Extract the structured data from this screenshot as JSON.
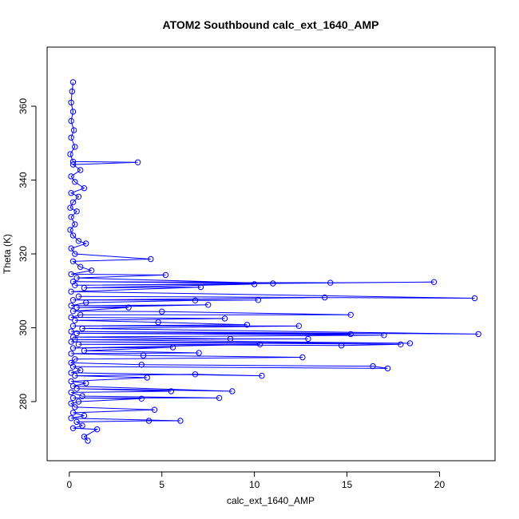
{
  "chart_data": {
    "type": "line",
    "title": "ATOM2 Southbound calc_ext_1640_AMP",
    "xlabel": "calc_ext_1640_AMP",
    "ylabel": "Theta (K)",
    "xlim": [
      -1.2,
      23.0
    ],
    "ylim": [
      264,
      376
    ],
    "xticks": [
      0,
      5,
      10,
      15,
      20
    ],
    "yticks": [
      280,
      300,
      320,
      340,
      360
    ],
    "grid": false,
    "legend": "none",
    "marker": "open-circle",
    "color": "#0000ff",
    "series": [
      {
        "values": [
          [
            0.2,
            366.5
          ],
          [
            0.15,
            364.0
          ],
          [
            0.1,
            361.0
          ],
          [
            0.2,
            358.5
          ],
          [
            0.1,
            356.0
          ],
          [
            0.25,
            353.5
          ],
          [
            0.1,
            351.5
          ],
          [
            0.3,
            349.0
          ],
          [
            0.05,
            347.0
          ],
          [
            0.2,
            345.0
          ],
          [
            3.7,
            344.8
          ],
          [
            0.2,
            344.2
          ],
          [
            0.6,
            342.7
          ],
          [
            0.1,
            341.0
          ],
          [
            0.3,
            339.5
          ],
          [
            0.8,
            337.8
          ],
          [
            0.1,
            336.5
          ],
          [
            0.5,
            335.5
          ],
          [
            0.2,
            334.0
          ],
          [
            0.05,
            332.5
          ],
          [
            0.4,
            331.5
          ],
          [
            0.1,
            330.0
          ],
          [
            0.3,
            328.0
          ],
          [
            0.05,
            326.5
          ],
          [
            0.2,
            325.0
          ],
          [
            0.5,
            323.5
          ],
          [
            0.9,
            322.8
          ],
          [
            0.1,
            321.5
          ],
          [
            0.3,
            320.0
          ],
          [
            4.4,
            318.6
          ],
          [
            0.2,
            318.0
          ],
          [
            0.6,
            316.5
          ],
          [
            1.2,
            315.5
          ],
          [
            0.1,
            314.5
          ],
          [
            5.2,
            314.3
          ],
          [
            0.4,
            313.5
          ],
          [
            11.0,
            312.0
          ],
          [
            0.2,
            312.5
          ],
          [
            14.1,
            312.2
          ],
          [
            19.7,
            312.4
          ],
          [
            0.3,
            311.5
          ],
          [
            10.0,
            311.8
          ],
          [
            0.8,
            310.8
          ],
          [
            7.1,
            311.0
          ],
          [
            0.1,
            309.8
          ],
          [
            21.9,
            308.0
          ],
          [
            0.5,
            308.5
          ],
          [
            13.8,
            308.2
          ],
          [
            0.2,
            307.5
          ],
          [
            10.2,
            307.5
          ],
          [
            6.8,
            307.4
          ],
          [
            0.9,
            306.8
          ],
          [
            0.1,
            306.0
          ],
          [
            7.5,
            306.2
          ],
          [
            0.4,
            305.5
          ],
          [
            3.2,
            305.5
          ],
          [
            0.2,
            304.5
          ],
          [
            5.0,
            304.4
          ],
          [
            15.2,
            303.5
          ],
          [
            0.6,
            303.5
          ],
          [
            0.1,
            302.8
          ],
          [
            8.4,
            302.5
          ],
          [
            0.3,
            302.0
          ],
          [
            4.8,
            301.5
          ],
          [
            9.6,
            300.8
          ],
          [
            0.2,
            300.5
          ],
          [
            12.4,
            300.5
          ],
          [
            0.7,
            299.8
          ],
          [
            22.1,
            298.3
          ],
          [
            0.1,
            299.0
          ],
          [
            15.2,
            298.3
          ],
          [
            0.4,
            298.5
          ],
          [
            17.0,
            298.0
          ],
          [
            0.2,
            297.5
          ],
          [
            8.7,
            297.0
          ],
          [
            12.9,
            297.0
          ],
          [
            0.3,
            296.8
          ],
          [
            18.4,
            295.8
          ],
          [
            0.1,
            296.2
          ],
          [
            17.9,
            295.5
          ],
          [
            14.7,
            295.2
          ],
          [
            0.5,
            295.5
          ],
          [
            10.3,
            295.5
          ],
          [
            0.2,
            294.5
          ],
          [
            5.6,
            294.7
          ],
          [
            0.8,
            293.8
          ],
          [
            7.0,
            293.2
          ],
          [
            0.1,
            293.0
          ],
          [
            4.0,
            292.5
          ],
          [
            12.6,
            292.0
          ],
          [
            0.3,
            291.5
          ],
          [
            0.1,
            290.5
          ],
          [
            3.9,
            290.0
          ],
          [
            16.4,
            289.6
          ],
          [
            17.2,
            289.0
          ],
          [
            0.2,
            289.5
          ],
          [
            0.6,
            288.5
          ],
          [
            0.1,
            287.8
          ],
          [
            10.4,
            287.0
          ],
          [
            6.8,
            287.4
          ],
          [
            0.3,
            287.0
          ],
          [
            4.2,
            286.5
          ],
          [
            0.1,
            285.5
          ],
          [
            0.9,
            285.0
          ],
          [
            0.2,
            284.2
          ],
          [
            8.8,
            282.8
          ],
          [
            0.4,
            283.5
          ],
          [
            5.5,
            282.8
          ],
          [
            0.1,
            282.5
          ],
          [
            0.7,
            281.5
          ],
          [
            8.1,
            281.0
          ],
          [
            0.2,
            281.0
          ],
          [
            3.9,
            280.8
          ],
          [
            0.5,
            280.0
          ],
          [
            0.1,
            279.5
          ],
          [
            0.3,
            278.5
          ],
          [
            4.6,
            277.8
          ],
          [
            0.2,
            277.0
          ],
          [
            0.8,
            276.2
          ],
          [
            0.1,
            275.5
          ],
          [
            6.0,
            274.8
          ],
          [
            4.3,
            274.8
          ],
          [
            0.4,
            274.5
          ],
          [
            0.7,
            273.5
          ],
          [
            0.2,
            272.8
          ],
          [
            1.5,
            272.5
          ],
          [
            0.8,
            270.5
          ],
          [
            1.0,
            269.4
          ]
        ]
      }
    ]
  }
}
